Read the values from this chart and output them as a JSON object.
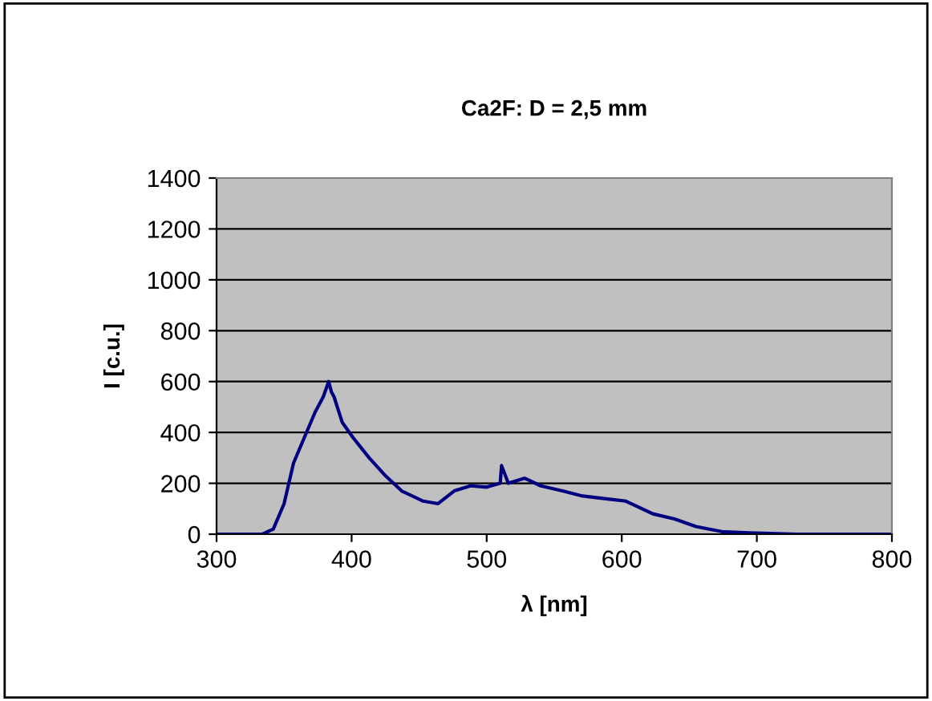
{
  "chart_data": {
    "type": "line",
    "title": "Ca2F: D = 2,5 mm",
    "xlabel": "λ [nm]",
    "ylabel": "I [c.u.]",
    "series": [
      {
        "color": "#000080",
        "x": [
          300,
          334,
          342,
          350,
          357,
          365,
          373,
          379,
          383,
          385,
          387,
          393,
          401,
          413,
          425,
          437,
          453,
          464,
          476,
          488,
          500,
          510,
          511,
          516,
          528,
          540,
          556,
          571,
          587,
          603,
          611,
          623,
          639,
          655,
          674,
          694,
          730,
          800
        ],
        "values": [
          0,
          0,
          20,
          120,
          280,
          380,
          480,
          540,
          600,
          560,
          540,
          440,
          380,
          300,
          230,
          170,
          130,
          120,
          170,
          190,
          185,
          200,
          270,
          200,
          220,
          190,
          170,
          150,
          140,
          130,
          110,
          80,
          60,
          30,
          10,
          5,
          0,
          0
        ]
      }
    ],
    "xlim": [
      300,
      800
    ],
    "xticks": [
      300,
      400,
      500,
      600,
      700,
      800
    ],
    "ylim": [
      0,
      1400
    ],
    "yticks": [
      0,
      200,
      400,
      600,
      800,
      1000,
      1200,
      1400
    ],
    "grid": "y",
    "marker": "none",
    "line_style": "solid"
  }
}
